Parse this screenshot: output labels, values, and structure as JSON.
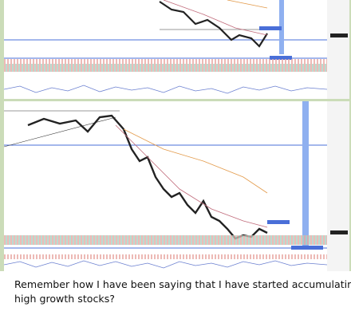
{
  "message": {
    "lines": [
      "Remember how I have been saying that I have started accumulating",
      "high growth stocks?"
    ]
  }
}
